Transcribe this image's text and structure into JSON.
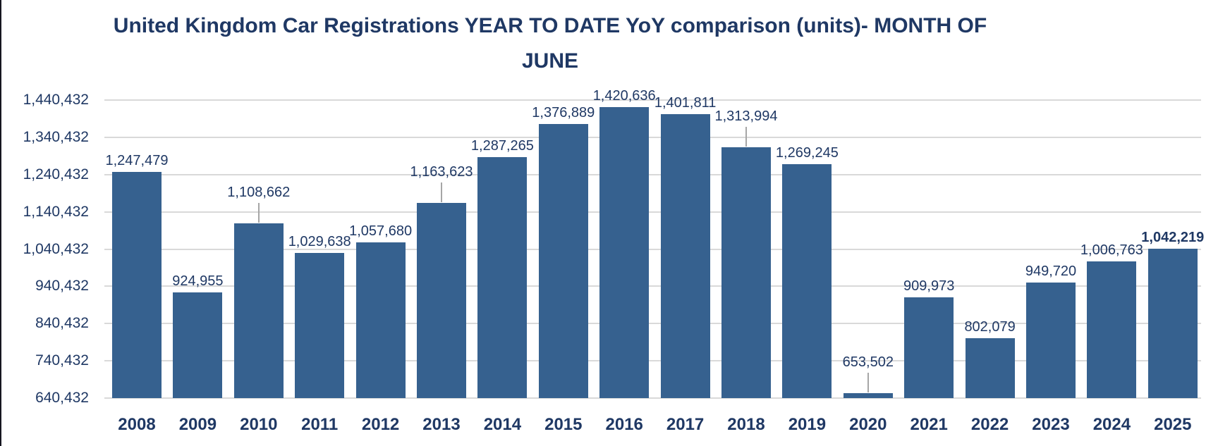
{
  "window": {
    "left_edge_color": "#15151f",
    "background": "#FFFFFF"
  },
  "title": {
    "line1": "United Kingdom Car Registrations YEAR TO DATE YoY comparison (units)- MONTH OF",
    "line2": "JUNE"
  },
  "colors": {
    "bar": "#36618F",
    "text": "#1F3864",
    "gridline": "#D9D9D9",
    "leader_line": "#A6A6A6",
    "background": "#FFFFFF"
  },
  "chart_data": {
    "type": "bar",
    "title": "United Kingdom Car Registrations YEAR TO DATE YoY comparison (units)- MONTH OF JUNE",
    "xlabel": "",
    "ylabel": "",
    "legend": "none",
    "grid": "horizontal",
    "ylim": [
      640432,
      1440432
    ],
    "ytick_step": 100000,
    "yticks": [
      {
        "value": 640432,
        "label": "640,432"
      },
      {
        "value": 740432,
        "label": "740,432"
      },
      {
        "value": 840432,
        "label": "840,432"
      },
      {
        "value": 940432,
        "label": "940,432"
      },
      {
        "value": 1040432,
        "label": "1,040,432"
      },
      {
        "value": 1140432,
        "label": "1,140,432"
      },
      {
        "value": 1240432,
        "label": "1,240,432"
      },
      {
        "value": 1340432,
        "label": "1,340,432"
      },
      {
        "value": 1440432,
        "label": "1,440,432"
      }
    ],
    "categories": [
      "2008",
      "2009",
      "2010",
      "2011",
      "2012",
      "2013",
      "2014",
      "2015",
      "2016",
      "2017",
      "2018",
      "2019",
      "2020",
      "2021",
      "2022",
      "2023",
      "2024",
      "2025"
    ],
    "values": [
      1247479,
      924955,
      1108662,
      1029638,
      1057680,
      1163623,
      1287265,
      1376889,
      1420636,
      1401811,
      1313994,
      1269245,
      653502,
      909973,
      802079,
      949720,
      1006763,
      1042219
    ],
    "value_labels": [
      "1,247,479",
      "924,955",
      "1,108,662",
      "1,029,638",
      "1,057,680",
      "1,163,623",
      "1,287,265",
      "1,376,889",
      "1,420,636",
      "1,401,811",
      "1,313,994",
      "1,269,245",
      "653,502",
      "909,973",
      "802,079",
      "949,720",
      "1,006,763",
      "1,042,219"
    ],
    "label_has_leader_line": [
      false,
      false,
      true,
      false,
      false,
      true,
      false,
      false,
      false,
      false,
      true,
      false,
      true,
      false,
      false,
      false,
      false,
      false
    ],
    "label_bold": [
      false,
      false,
      false,
      false,
      false,
      false,
      false,
      false,
      false,
      false,
      false,
      false,
      false,
      false,
      false,
      false,
      false,
      true
    ]
  }
}
